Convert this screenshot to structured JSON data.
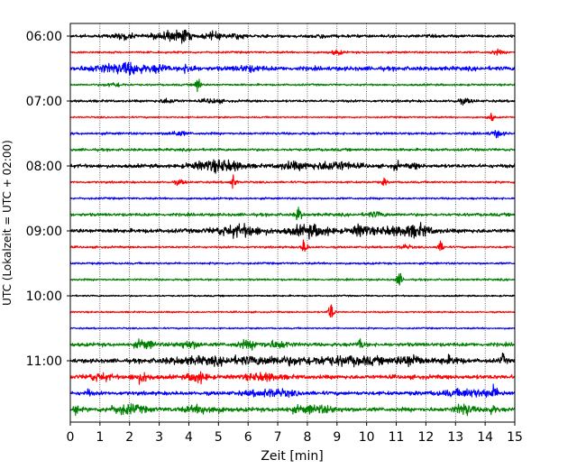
{
  "chart_data": {
    "type": "line",
    "title": "",
    "xlabel": "Zeit  [min]",
    "ylabel": "UTC (Lokalzeit = UTC + 02:00)",
    "xlim": [
      0,
      15
    ],
    "x_ticks": [
      "0",
      "1",
      "2",
      "3",
      "4",
      "5",
      "6",
      "7",
      "8",
      "9",
      "10",
      "11",
      "12",
      "13",
      "14",
      "15"
    ],
    "y_ticks": [
      "06:00",
      "07:00",
      "08:00",
      "09:00",
      "10:00",
      "11:00"
    ],
    "grid": "vertical dotted at each minute",
    "trace_interval_minutes": 15,
    "colors": [
      "#000000",
      "#ff0000",
      "#0000ff",
      "#008000"
    ],
    "traces": [
      {
        "time": "06:00",
        "color": "#000000",
        "base_amp": 1.5,
        "events": [
          [
            1.8,
            3,
            0.3
          ],
          [
            3.2,
            4,
            0.4
          ],
          [
            3.8,
            6,
            0.25
          ],
          [
            4.8,
            3,
            0.3
          ],
          [
            5.6,
            2,
            0.3
          ],
          [
            8.4,
            2,
            0.2
          ]
        ]
      },
      {
        "time": "06:15",
        "color": "#ff0000",
        "base_amp": 1.0,
        "events": [
          [
            9.0,
            2,
            0.2
          ],
          [
            14.4,
            2,
            0.2
          ]
        ]
      },
      {
        "time": "06:30",
        "color": "#0000ff",
        "base_amp": 2.0,
        "events": [
          [
            1.4,
            3,
            0.8
          ],
          [
            2.1,
            4,
            0.4
          ],
          [
            3.0,
            3,
            0.3
          ],
          [
            4.0,
            4,
            0.2
          ],
          [
            6.0,
            2,
            0.5
          ]
        ]
      },
      {
        "time": "06:45",
        "color": "#008000",
        "base_amp": 1.0,
        "events": [
          [
            1.5,
            2,
            0.3
          ],
          [
            4.3,
            8,
            0.1
          ]
        ]
      },
      {
        "time": "07:00",
        "color": "#000000",
        "base_amp": 1.2,
        "events": [
          [
            3.3,
            2,
            0.3
          ],
          [
            4.8,
            2,
            0.3
          ],
          [
            13.3,
            2,
            0.3
          ]
        ]
      },
      {
        "time": "07:15",
        "color": "#ff0000",
        "base_amp": 0.8,
        "events": [
          [
            14.2,
            4,
            0.1
          ]
        ]
      },
      {
        "time": "07:30",
        "color": "#0000ff",
        "base_amp": 1.2,
        "events": [
          [
            3.6,
            2,
            0.3
          ],
          [
            14.4,
            3,
            0.2
          ]
        ]
      },
      {
        "time": "07:45",
        "color": "#008000",
        "base_amp": 1.3,
        "events": []
      },
      {
        "time": "08:00",
        "color": "#000000",
        "base_amp": 1.8,
        "events": [
          [
            4.6,
            3,
            0.6
          ],
          [
            5.3,
            4,
            0.6
          ],
          [
            7.5,
            3,
            0.5
          ],
          [
            8.9,
            4,
            0.7
          ],
          [
            11.0,
            4,
            0.1
          ],
          [
            11.6,
            2,
            0.2
          ]
        ]
      },
      {
        "time": "08:15",
        "color": "#ff0000",
        "base_amp": 1.0,
        "events": [
          [
            3.7,
            2,
            0.2
          ],
          [
            5.5,
            7,
            0.1
          ],
          [
            10.6,
            3,
            0.1
          ]
        ]
      },
      {
        "time": "08:30",
        "color": "#0000ff",
        "base_amp": 1.0,
        "events": []
      },
      {
        "time": "08:45",
        "color": "#008000",
        "base_amp": 1.5,
        "events": [
          [
            7.7,
            7,
            0.1
          ],
          [
            10.3,
            2,
            0.3
          ]
        ]
      },
      {
        "time": "09:00",
        "color": "#000000",
        "base_amp": 2.0,
        "events": [
          [
            5.7,
            5,
            0.8
          ],
          [
            8.1,
            5,
            0.7
          ],
          [
            9.8,
            5,
            0.3
          ],
          [
            10.8,
            3,
            0.6
          ],
          [
            11.7,
            5,
            0.5
          ]
        ]
      },
      {
        "time": "09:15",
        "color": "#ff0000",
        "base_amp": 1.0,
        "events": [
          [
            7.9,
            7,
            0.1
          ],
          [
            11.3,
            2,
            0.2
          ],
          [
            12.5,
            5,
            0.1
          ]
        ]
      },
      {
        "time": "09:30",
        "color": "#0000ff",
        "base_amp": 1.0,
        "events": []
      },
      {
        "time": "09:45",
        "color": "#008000",
        "base_amp": 1.0,
        "events": [
          [
            11.1,
            6,
            0.1
          ]
        ]
      },
      {
        "time": "10:00",
        "color": "#000000",
        "base_amp": 0.8,
        "events": []
      },
      {
        "time": "10:15",
        "color": "#ff0000",
        "base_amp": 0.8,
        "events": [
          [
            8.8,
            9,
            0.1
          ]
        ]
      },
      {
        "time": "10:30",
        "color": "#0000ff",
        "base_amp": 0.8,
        "events": []
      },
      {
        "time": "10:45",
        "color": "#008000",
        "base_amp": 1.8,
        "events": [
          [
            2.5,
            4,
            0.3
          ],
          [
            4.0,
            3,
            0.4
          ],
          [
            6.0,
            3,
            0.4
          ],
          [
            7.0,
            3,
            0.4
          ],
          [
            9.8,
            5,
            0.1
          ]
        ]
      },
      {
        "time": "11:00",
        "color": "#000000",
        "base_amp": 2.0,
        "events": [
          [
            4.0,
            2,
            1.0
          ],
          [
            6.5,
            3,
            2.0
          ],
          [
            9.5,
            3,
            1.5
          ],
          [
            11.5,
            5,
            0.4
          ],
          [
            12.8,
            3,
            0.4
          ],
          [
            14.6,
            5,
            0.1
          ]
        ]
      },
      {
        "time": "11:15",
        "color": "#ff0000",
        "base_amp": 2.0,
        "events": [
          [
            1.0,
            3,
            0.4
          ],
          [
            2.4,
            4,
            0.3
          ],
          [
            4.3,
            5,
            0.3
          ],
          [
            6.5,
            3,
            0.6
          ]
        ]
      },
      {
        "time": "11:30",
        "color": "#0000ff",
        "base_amp": 1.8,
        "events": [
          [
            0.6,
            3,
            0.1
          ],
          [
            6.8,
            3,
            0.8
          ],
          [
            13.5,
            3,
            1.0
          ],
          [
            14.3,
            5,
            0.1
          ]
        ]
      },
      {
        "time": "11:45",
        "color": "#008000",
        "base_amp": 2.0,
        "events": [
          [
            0.2,
            5,
            0.1
          ],
          [
            1.9,
            4,
            0.6
          ],
          [
            4.5,
            3,
            0.6
          ],
          [
            8.2,
            3,
            0.8
          ],
          [
            13.3,
            5,
            0.3
          ],
          [
            14.2,
            3,
            0.2
          ]
        ]
      }
    ]
  }
}
